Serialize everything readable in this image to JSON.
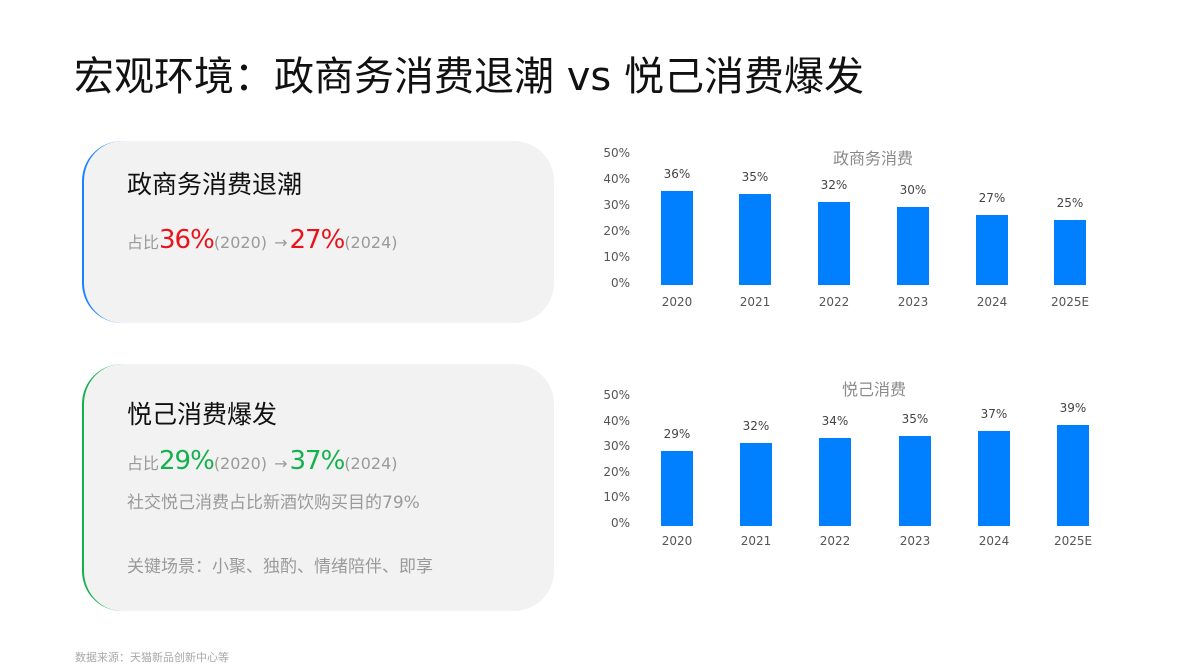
{
  "title": "宏观环境：政商务消费退潮 vs 悦己消费爆发",
  "cards": [
    {
      "title": "政商务消费退潮",
      "accent": "#1a82ff",
      "stat_prefix": "占比",
      "from_value": "36%",
      "from_year": "(2020)",
      "arrow": "→",
      "to_value": "27%",
      "to_year": "(2024)",
      "value_color": "#e8141c"
    },
    {
      "title": "悦己消费爆发",
      "accent": "#12b14c",
      "stat_prefix": "占比",
      "from_value": "29%",
      "from_year": "(2020)",
      "arrow": "→",
      "to_value": "37%",
      "to_year": "(2024)",
      "value_color": "#16b14f",
      "note1": "社交悦己消费占比新酒饮购买目的79%",
      "note2": "关键场景：小聚、独酌、情绪陪伴、即享"
    }
  ],
  "source": "数据来源：天猫新品创新中心等",
  "chart_data": [
    {
      "type": "bar",
      "title": "政商务消费",
      "categories": [
        "2020",
        "2021",
        "2022",
        "2023",
        "2024",
        "2025E"
      ],
      "values": [
        36,
        35,
        32,
        30,
        27,
        25
      ],
      "value_labels": [
        "36%",
        "35%",
        "32%",
        "30%",
        "27%",
        "25%"
      ],
      "yticks": [
        "50%",
        "40%",
        "30%",
        "20%",
        "10%",
        "0%"
      ],
      "ylim": [
        0,
        50
      ],
      "xlabel": "",
      "ylabel": "",
      "grid": false,
      "legend": false,
      "bar_color": "#0080ff"
    },
    {
      "type": "bar",
      "title": "悦己消费",
      "categories": [
        "2020",
        "2021",
        "2022",
        "2023",
        "2024",
        "2025E"
      ],
      "values": [
        29,
        32,
        34,
        35,
        37,
        39
      ],
      "value_labels": [
        "29%",
        "32%",
        "34%",
        "35%",
        "37%",
        "39%"
      ],
      "yticks": [
        "50%",
        "40%",
        "30%",
        "20%",
        "10%",
        "0%"
      ],
      "ylim": [
        0,
        50
      ],
      "xlabel": "",
      "ylabel": "",
      "grid": false,
      "legend": false,
      "bar_color": "#0080ff"
    }
  ]
}
